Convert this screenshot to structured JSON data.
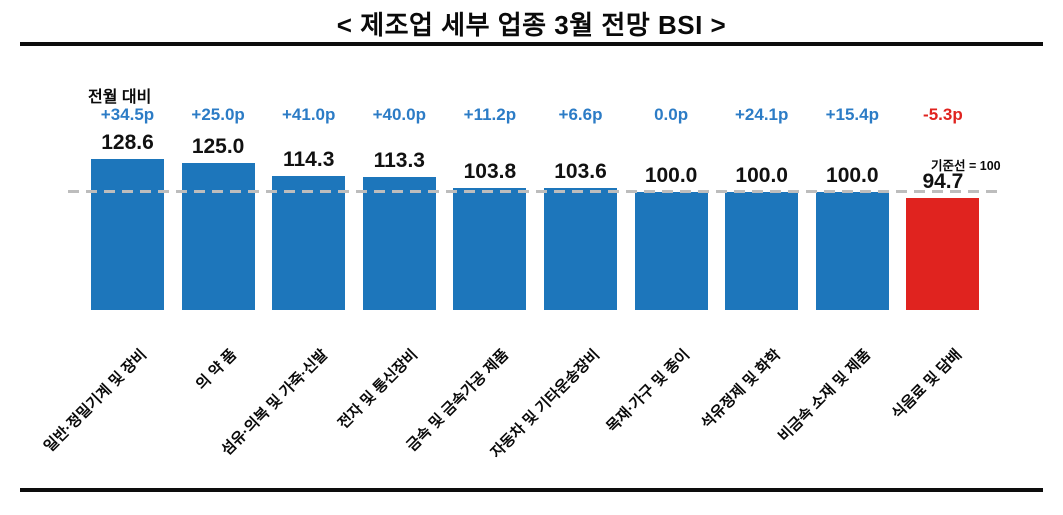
{
  "title": "< 제조업 세부 업종 3월 전망 BSI >",
  "legend": {
    "delta_label": "전월 대비",
    "baseline_label": "기준선 = 100"
  },
  "colors": {
    "bar_positive": "#1d76bb",
    "bar_negative": "#e0231f",
    "delta_positive": "#2c7cc6",
    "delta_negative": "#e0231f",
    "baseline_line": "#bdbdbd",
    "text": "#0a0a0a"
  },
  "chart_data": {
    "type": "bar",
    "title": "< 제조업 세부 업종 3월 전망 BSI >",
    "baseline": 100,
    "legend_position": "none",
    "grid": false,
    "categories": [
      "일반·정밀기계 및 장비",
      "의 약 품",
      "섬유·의복 및 가죽·신발",
      "전자 및 통신장비",
      "금속 및 금속가공 제품",
      "자동차 및 기타운송장비",
      "목재·가구 및 종이",
      "석유정제 및 화학",
      "비금속 소재 및 제품",
      "식음료 및 담배"
    ],
    "values": [
      128.6,
      125.0,
      114.3,
      113.3,
      103.8,
      103.6,
      100.0,
      100.0,
      100.0,
      94.7
    ],
    "value_labels": [
      "128.6",
      "125.0",
      "114.3",
      "113.3",
      "103.8",
      "103.6",
      "100.0",
      "100.0",
      "100.0",
      "94.7"
    ],
    "deltas": [
      "+34.5p",
      "+25.0p",
      "+41.0p",
      "+40.0p",
      "+11.2p",
      "+6.6p",
      "0.0p",
      "+24.1p",
      "+15.4p",
      "-5.3p"
    ]
  }
}
